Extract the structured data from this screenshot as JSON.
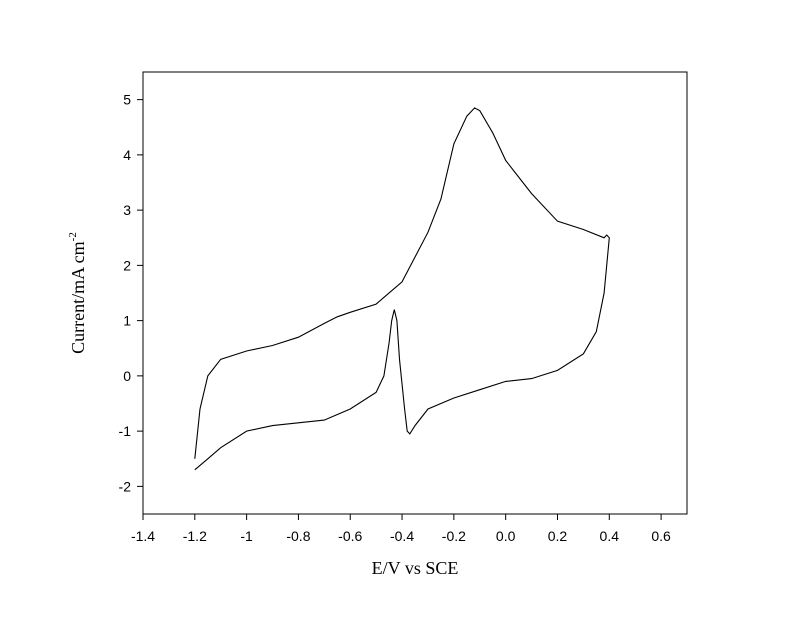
{
  "chart_data": {
    "type": "line",
    "xlabel": "E/V  vs SCE",
    "ylabel": {
      "text": "Current/mA cm",
      "superscript": "-2"
    },
    "xlim": [
      -1.4,
      0.7
    ],
    "ylim": [
      -2.5,
      5.5
    ],
    "xticks": [
      -1.4,
      -1.2,
      -1.0,
      -0.8,
      -0.6,
      -0.4,
      -0.2,
      {
        "value": 0,
        "label": "0.0"
      },
      0.2,
      0.4,
      0.6
    ],
    "yticks": [
      -2,
      -1,
      0,
      1,
      2,
      3,
      4,
      5
    ],
    "series": [
      {
        "color": "#000000",
        "x": [
          -1.2,
          -1.15,
          -1.1,
          -1.0,
          -0.9,
          -0.8,
          -0.7,
          -0.6,
          -0.5,
          -0.47,
          -0.45,
          -0.44,
          -0.43,
          -0.42,
          -0.41,
          -0.39,
          -0.38,
          -0.37,
          -0.35,
          -0.3,
          -0.2,
          -0.1,
          0.0,
          0.1,
          0.2,
          0.3,
          0.35,
          0.38,
          0.4,
          0.39,
          0.38,
          0.3,
          0.2,
          0.1,
          0.05,
          0.0,
          -0.05,
          -0.1,
          -0.12,
          -0.15,
          -0.2,
          -0.25,
          -0.3,
          -0.4,
          -0.5,
          -0.6,
          -0.65,
          -0.7,
          -0.8,
          -0.9,
          -1.0,
          -1.1,
          -1.15,
          -1.18,
          -1.2
        ],
        "values": [
          -1.7,
          -1.5,
          -1.3,
          -1.0,
          -0.9,
          -0.85,
          -0.8,
          -0.6,
          -0.3,
          0.0,
          0.6,
          1.0,
          1.2,
          1.0,
          0.3,
          -0.6,
          -1.0,
          -1.05,
          -0.9,
          -0.6,
          -0.4,
          -0.25,
          -0.1,
          -0.05,
          0.1,
          0.4,
          0.8,
          1.5,
          2.5,
          2.55,
          2.5,
          2.65,
          2.8,
          3.3,
          3.6,
          3.9,
          4.4,
          4.8,
          4.85,
          4.7,
          4.2,
          3.2,
          2.6,
          1.7,
          1.3,
          1.15,
          1.07,
          0.95,
          0.7,
          0.55,
          0.45,
          0.3,
          0.0,
          -0.6,
          -1.5
        ]
      }
    ]
  }
}
